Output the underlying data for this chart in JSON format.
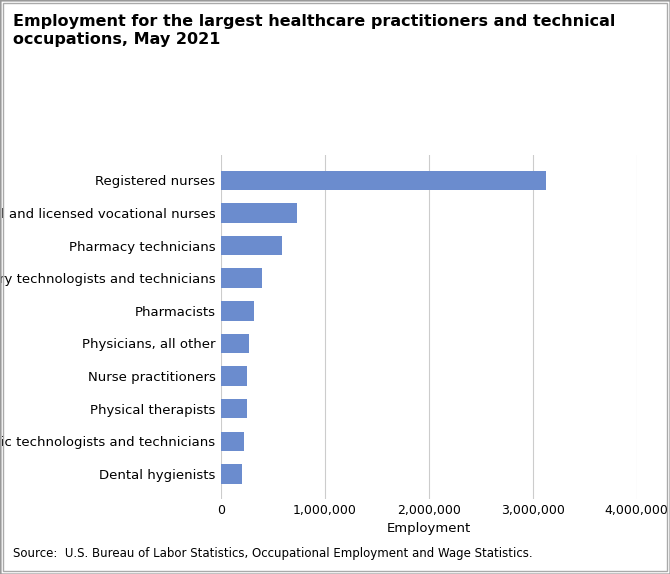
{
  "title_line1": "Employment for the largest healthcare practitioners and technical",
  "title_line2": "occupations, May 2021",
  "categories": [
    "Dental hygienists",
    "Radiologic technologists and technicians",
    "Physical therapists",
    "Nurse practitioners",
    "Physicians, all other",
    "Pharmacists",
    "Clinical laboratory technologists and technicians",
    "Pharmacy technicians",
    "Licensed practical and licensed vocational nurses",
    "Registered nurses"
  ],
  "values": [
    204000,
    221000,
    247000,
    246000,
    268000,
    318000,
    392000,
    590000,
    728000,
    3130000
  ],
  "bar_color": "#6b8cce",
  "xlabel": "Employment",
  "xlim": [
    0,
    4000000
  ],
  "xticks": [
    0,
    1000000,
    2000000,
    3000000,
    4000000
  ],
  "xtick_labels": [
    "0",
    "1,000,000",
    "2,000,000",
    "3,000,000",
    "4,000,000"
  ],
  "source_text": "Source:  U.S. Bureau of Labor Statistics, Occupational Employment and Wage Statistics.",
  "title_fontsize": 11.5,
  "label_fontsize": 9.5,
  "tick_fontsize": 9,
  "source_fontsize": 8.5,
  "background_color": "#ffffff",
  "plot_bg_color": "#ffffff",
  "grid_color": "#cccccc"
}
